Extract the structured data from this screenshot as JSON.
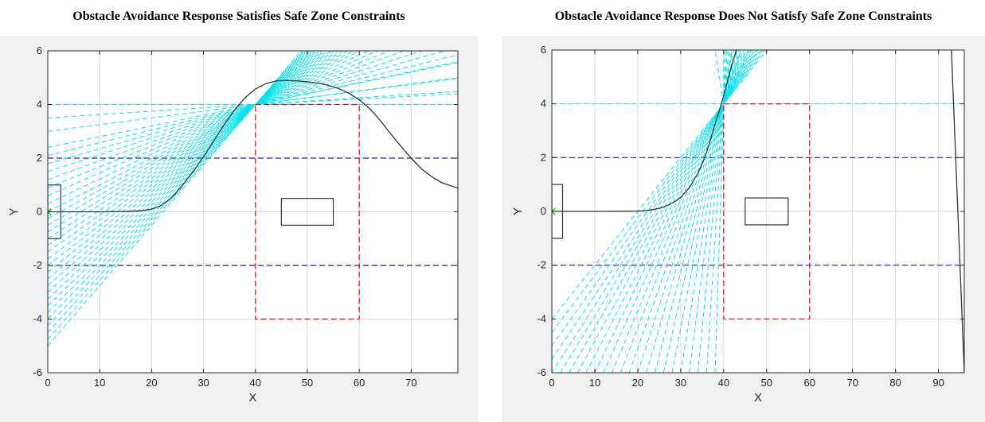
{
  "chart_data": [
    {
      "type": "line",
      "title": "Obstacle Avoidance Response Satisfies Safe Zone Constraints",
      "xlabel": "X",
      "ylabel": "Y",
      "xlim": [
        0,
        79
      ],
      "ylim": [
        -6,
        6
      ],
      "xticks": [
        0,
        10,
        20,
        30,
        40,
        50,
        60,
        70
      ],
      "yticks": [
        -6,
        -4,
        -2,
        0,
        2,
        4,
        6
      ],
      "grid": true,
      "colors": {
        "trajectory": "#333333",
        "fan": "#00e5ee",
        "constraint": "#1f1fb4",
        "safe_zone": "#ff0000",
        "start": "#00cc00",
        "background": "#f0f0f0"
      },
      "trajectory": {
        "x": [
          0,
          5,
          10,
          15,
          18,
          20,
          22,
          24,
          26,
          28,
          30,
          32,
          34,
          36,
          38,
          40,
          42,
          44,
          46,
          48,
          50,
          52,
          54,
          56,
          58,
          60,
          62,
          64,
          66,
          68,
          70,
          72,
          74,
          76,
          79
        ],
        "y": [
          0,
          0,
          0,
          0.01,
          0.04,
          0.1,
          0.25,
          0.55,
          1.0,
          1.5,
          2.05,
          2.65,
          3.25,
          3.8,
          4.25,
          4.58,
          4.78,
          4.88,
          4.9,
          4.88,
          4.85,
          4.8,
          4.72,
          4.6,
          4.42,
          4.18,
          3.85,
          3.42,
          2.92,
          2.45,
          2.0,
          1.6,
          1.3,
          1.08,
          0.88
        ]
      },
      "fan": {
        "pivot": [
          40,
          4
        ],
        "y_at_left_edge": [
          -5.0,
          -4.75,
          -4.5,
          -4.25,
          -4.0,
          -3.75,
          -3.5,
          -3.25,
          -3.0,
          -2.75,
          -2.5,
          -2.25,
          -2.0,
          -1.75,
          -1.5,
          -1.25,
          -1.0,
          -0.75,
          -0.5,
          -0.25,
          0.0,
          0.3,
          0.6,
          0.9,
          1.2,
          1.5,
          1.8,
          2.1,
          2.4,
          3.0,
          3.5,
          4.0
        ],
        "y_at_right_edge": [
          4.4,
          5.0,
          5.6
        ]
      },
      "horizontal_lines": {
        "constraints": [
          2,
          -2
        ],
        "boundaries": [
          4,
          -6
        ]
      },
      "safe_zone": {
        "x": [
          40,
          60
        ],
        "y": [
          -4,
          4
        ]
      },
      "obstacle": {
        "x": [
          45,
          55
        ],
        "y": [
          -0.5,
          0.5
        ]
      },
      "start_box": {
        "x": [
          0,
          2.5
        ],
        "y": [
          -1,
          1
        ]
      },
      "start_point": [
        0,
        0
      ]
    },
    {
      "type": "line",
      "title": "Obstacle Avoidance Response Does Not Satisfy Safe Zone Constraints",
      "xlabel": "X",
      "ylabel": "Y",
      "xlim": [
        0,
        96
      ],
      "ylim": [
        -6,
        6
      ],
      "xticks": [
        0,
        10,
        20,
        30,
        40,
        50,
        60,
        70,
        80,
        90
      ],
      "yticks": [
        -6,
        -4,
        -2,
        0,
        2,
        4,
        6
      ],
      "grid": true,
      "colors": {
        "trajectory": "#333333",
        "fan": "#00e5ee",
        "constraint": "#1f1fb4",
        "safe_zone": "#ff0000",
        "start": "#00cc00",
        "background": "#f0f0f0"
      },
      "trajectory": {
        "x": [
          0,
          10,
          20,
          22,
          24,
          26,
          28,
          30,
          32,
          34,
          35,
          36,
          37,
          38,
          39,
          40,
          41,
          42,
          43
        ],
        "y": [
          0,
          0,
          0.01,
          0.03,
          0.08,
          0.16,
          0.3,
          0.52,
          0.88,
          1.42,
          1.78,
          2.2,
          2.7,
          3.25,
          3.75,
          4.3,
          4.9,
          5.5,
          6.0
        ]
      },
      "fan": {
        "pivot": [
          40,
          4
        ],
        "x_at_bottom_edge": [
          0,
          2,
          4,
          6,
          8,
          10,
          12,
          14,
          16,
          18,
          20,
          22,
          24,
          26,
          28,
          30,
          32,
          34,
          36,
          38
        ],
        "y_at_left_edge": [
          -5.5,
          -5.0,
          -4.5,
          -4.0
        ],
        "top_edge_x": [
          38,
          40,
          42,
          44,
          46
        ]
      },
      "far_line": {
        "x": [
          93,
          96
        ],
        "y": [
          6,
          -6
        ]
      },
      "horizontal_lines": {
        "constraints": [
          2,
          -2
        ],
        "boundaries": [
          4,
          -6
        ]
      },
      "safe_zone": {
        "x": [
          40,
          60
        ],
        "y": [
          -4,
          4
        ]
      },
      "obstacle": {
        "x": [
          45,
          55
        ],
        "y": [
          -0.5,
          0.5
        ]
      },
      "start_box": {
        "x": [
          0,
          2.5
        ],
        "y": [
          -1,
          1
        ]
      },
      "start_point": [
        0,
        0
      ]
    }
  ]
}
